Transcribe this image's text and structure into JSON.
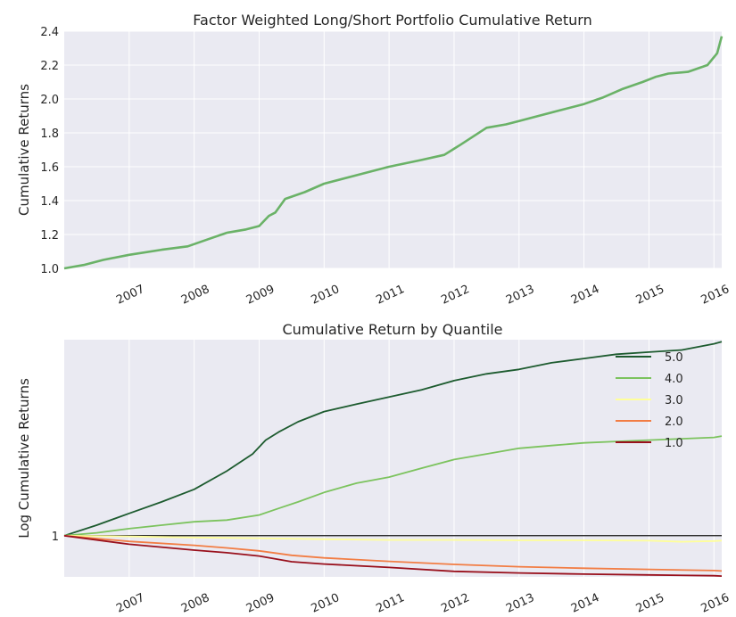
{
  "chart_data": [
    {
      "type": "line",
      "title": "Factor Weighted Long/Short Portfolio Cumulative Return",
      "xlabel": "",
      "ylabel": "Cumulative Returns",
      "xlim": [
        2006.0,
        2016.12
      ],
      "ylim": [
        1.0,
        2.4
      ],
      "x_ticks": [
        2007,
        2008,
        2009,
        2010,
        2011,
        2012,
        2013,
        2014,
        2015,
        2016
      ],
      "x_tick_labels": [
        "2007",
        "2008",
        "2009",
        "2010",
        "2011",
        "2012",
        "2013",
        "2014",
        "2015",
        "2016"
      ],
      "y_ticks": [
        1.0,
        1.2,
        1.4,
        1.6,
        1.8,
        2.0,
        2.2,
        2.4
      ],
      "y_tick_labels": [
        "1.0",
        "1.2",
        "1.4",
        "1.6",
        "1.8",
        "2.0",
        "2.2",
        "2.4"
      ],
      "grid": true,
      "series": [
        {
          "color": "#6ab267",
          "x": [
            2006.0,
            2006.3,
            2006.6,
            2007.0,
            2007.5,
            2007.9,
            2008.2,
            2008.5,
            2008.8,
            2009.0,
            2009.15,
            2009.25,
            2009.4,
            2009.7,
            2010.0,
            2010.5,
            2011.0,
            2011.5,
            2011.85,
            2012.1,
            2012.3,
            2012.5,
            2012.8,
            2013.0,
            2013.3,
            2013.6,
            2014.0,
            2014.3,
            2014.6,
            2014.9,
            2015.1,
            2015.3,
            2015.6,
            2015.9,
            2016.05,
            2016.12
          ],
          "y": [
            1.0,
            1.02,
            1.05,
            1.08,
            1.11,
            1.13,
            1.17,
            1.21,
            1.23,
            1.25,
            1.31,
            1.33,
            1.41,
            1.45,
            1.5,
            1.55,
            1.6,
            1.64,
            1.67,
            1.73,
            1.78,
            1.83,
            1.85,
            1.87,
            1.9,
            1.93,
            1.97,
            2.01,
            2.06,
            2.1,
            2.13,
            2.15,
            2.16,
            2.2,
            2.27,
            2.37
          ]
        }
      ]
    },
    {
      "type": "line",
      "title": "Cumulative Return by Quantile",
      "xlabel": "",
      "ylabel": "Log Cumulative Returns",
      "log_scale": true,
      "xlim": [
        2006.0,
        2016.12
      ],
      "y_ticks": [
        1
      ],
      "y_tick_labels": [
        "1"
      ],
      "x_ticks": [
        2007,
        2008,
        2009,
        2010,
        2011,
        2012,
        2013,
        2014,
        2015,
        2016
      ],
      "x_tick_labels": [
        "2007",
        "2008",
        "2009",
        "2010",
        "2011",
        "2012",
        "2013",
        "2014",
        "2015",
        "2016"
      ],
      "grid": true,
      "legend": "top-right",
      "series": [
        {
          "name": "5.0",
          "color": "#1d5b2f",
          "x": [
            2006.0,
            2006.5,
            2007.0,
            2007.5,
            2008.0,
            2008.5,
            2008.9,
            2009.1,
            2009.3,
            2009.6,
            2010.0,
            2010.5,
            2011.0,
            2011.5,
            2012.0,
            2012.5,
            2013.0,
            2013.5,
            2014.0,
            2014.5,
            2015.0,
            2015.5,
            2016.0,
            2016.12
          ],
          "y": [
            1.0,
            1.03,
            1.065,
            1.1,
            1.14,
            1.2,
            1.26,
            1.31,
            1.34,
            1.38,
            1.42,
            1.45,
            1.48,
            1.51,
            1.55,
            1.58,
            1.6,
            1.63,
            1.65,
            1.67,
            1.68,
            1.69,
            1.72,
            1.73
          ]
        },
        {
          "name": "4.0",
          "color": "#7cc35e",
          "x": [
            2006.0,
            2006.5,
            2007.0,
            2007.5,
            2008.0,
            2008.5,
            2009.0,
            2009.3,
            2009.6,
            2010.0,
            2010.5,
            2011.0,
            2011.5,
            2012.0,
            2012.5,
            2013.0,
            2013.5,
            2014.0,
            2014.5,
            2015.0,
            2015.5,
            2016.0,
            2016.12
          ],
          "y": [
            1.0,
            1.008,
            1.02,
            1.03,
            1.04,
            1.045,
            1.06,
            1.08,
            1.1,
            1.13,
            1.16,
            1.18,
            1.21,
            1.24,
            1.26,
            1.28,
            1.29,
            1.3,
            1.305,
            1.31,
            1.315,
            1.32,
            1.325
          ]
        },
        {
          "name": "3.0",
          "color": "#ffff99",
          "x": [
            2006.0,
            2007.0,
            2008.0,
            2009.0,
            2010.0,
            2011.0,
            2012.0,
            2013.0,
            2014.0,
            2015.0,
            2015.5,
            2016.0,
            2016.12
          ],
          "y": [
            1.0,
            0.998,
            0.995,
            0.993,
            0.99,
            0.988,
            0.988,
            0.987,
            0.987,
            0.986,
            0.983,
            0.985,
            0.986
          ]
        },
        {
          "name": "2.0",
          "color": "#f27d44",
          "x": [
            2006.0,
            2007.0,
            2008.0,
            2008.5,
            2009.0,
            2009.5,
            2010.0,
            2011.0,
            2012.0,
            2013.0,
            2014.0,
            2015.0,
            2016.0,
            2016.12
          ],
          "y": [
            1.0,
            0.984,
            0.973,
            0.966,
            0.958,
            0.946,
            0.939,
            0.93,
            0.922,
            0.916,
            0.912,
            0.909,
            0.906,
            0.905
          ]
        },
        {
          "name": "1.0",
          "color": "#99101c",
          "x": [
            2006.0,
            2007.0,
            2008.0,
            2008.5,
            2009.0,
            2009.5,
            2010.0,
            2011.0,
            2012.0,
            2013.0,
            2014.0,
            2015.0,
            2016.0,
            2016.12
          ],
          "y": [
            1.0,
            0.976,
            0.96,
            0.953,
            0.944,
            0.929,
            0.923,
            0.914,
            0.904,
            0.9,
            0.897,
            0.895,
            0.893,
            0.892
          ]
        }
      ]
    }
  ]
}
